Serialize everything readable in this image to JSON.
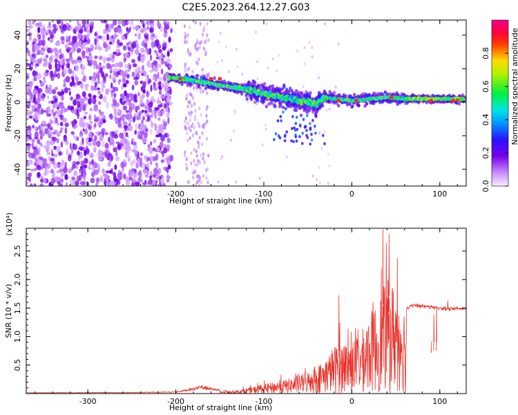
{
  "title": "C2E5.2023.264.12.27.G03",
  "chart_data": [
    {
      "type": "heatmap",
      "xlabel": "Height of straight line (km)",
      "ylabel": "Frequency (Hz)",
      "xlim": [
        -370,
        130
      ],
      "ylim": [
        -50,
        49
      ],
      "x_ticks": [
        -300,
        -200,
        -100,
        0,
        100
      ],
      "y_ticks": [
        -40,
        -20,
        0,
        20,
        40
      ],
      "colorbar": {
        "label": "Normalized spectral amplitude",
        "range": [
          0,
          1
        ],
        "ticks": [
          0.0,
          0.2,
          0.4,
          0.6,
          0.8
        ]
      },
      "ridge": {
        "x": [
          -210,
          -180,
          -150,
          -120,
          -100,
          -80,
          -60,
          -40,
          -30,
          -20,
          0,
          20,
          40,
          60,
          80,
          100,
          130
        ],
        "freq": [
          15,
          13,
          10,
          8,
          5,
          3,
          1,
          -1,
          3,
          2,
          1,
          2,
          3,
          2,
          2,
          2,
          2
        ]
      }
    },
    {
      "type": "line",
      "xlabel": "Height of straight line (km)",
      "ylabel": "SNR (10 * v/v)",
      "y_multiplier": "(x10⁴)",
      "xlim": [
        -370,
        130
      ],
      "ylim": [
        0,
        29000
      ],
      "x_ticks": [
        -300,
        -200,
        -100,
        0,
        100
      ],
      "y_tick_labels": [
        "0.5",
        "1.0",
        "1.5",
        "2.0",
        "2.5"
      ],
      "series": [
        {
          "color": "#e8312a",
          "envelope_x": [
            -370,
            -250,
            -200,
            -170,
            -150,
            -130,
            -110,
            -90,
            -70,
            -50,
            -30,
            -20,
            -10,
            0,
            10,
            20,
            30,
            40,
            50,
            55,
            60,
            62,
            70,
            90,
            110,
            130
          ],
          "envelope_y": [
            150,
            200,
            300,
            1200,
            600,
            800,
            1800,
            2800,
            3800,
            5500,
            8500,
            12000,
            13000,
            13500,
            15000,
            20000,
            23000,
            29000,
            27000,
            25000,
            22000,
            15000,
            15500,
            15200,
            14800,
            15000
          ]
        }
      ]
    }
  ]
}
